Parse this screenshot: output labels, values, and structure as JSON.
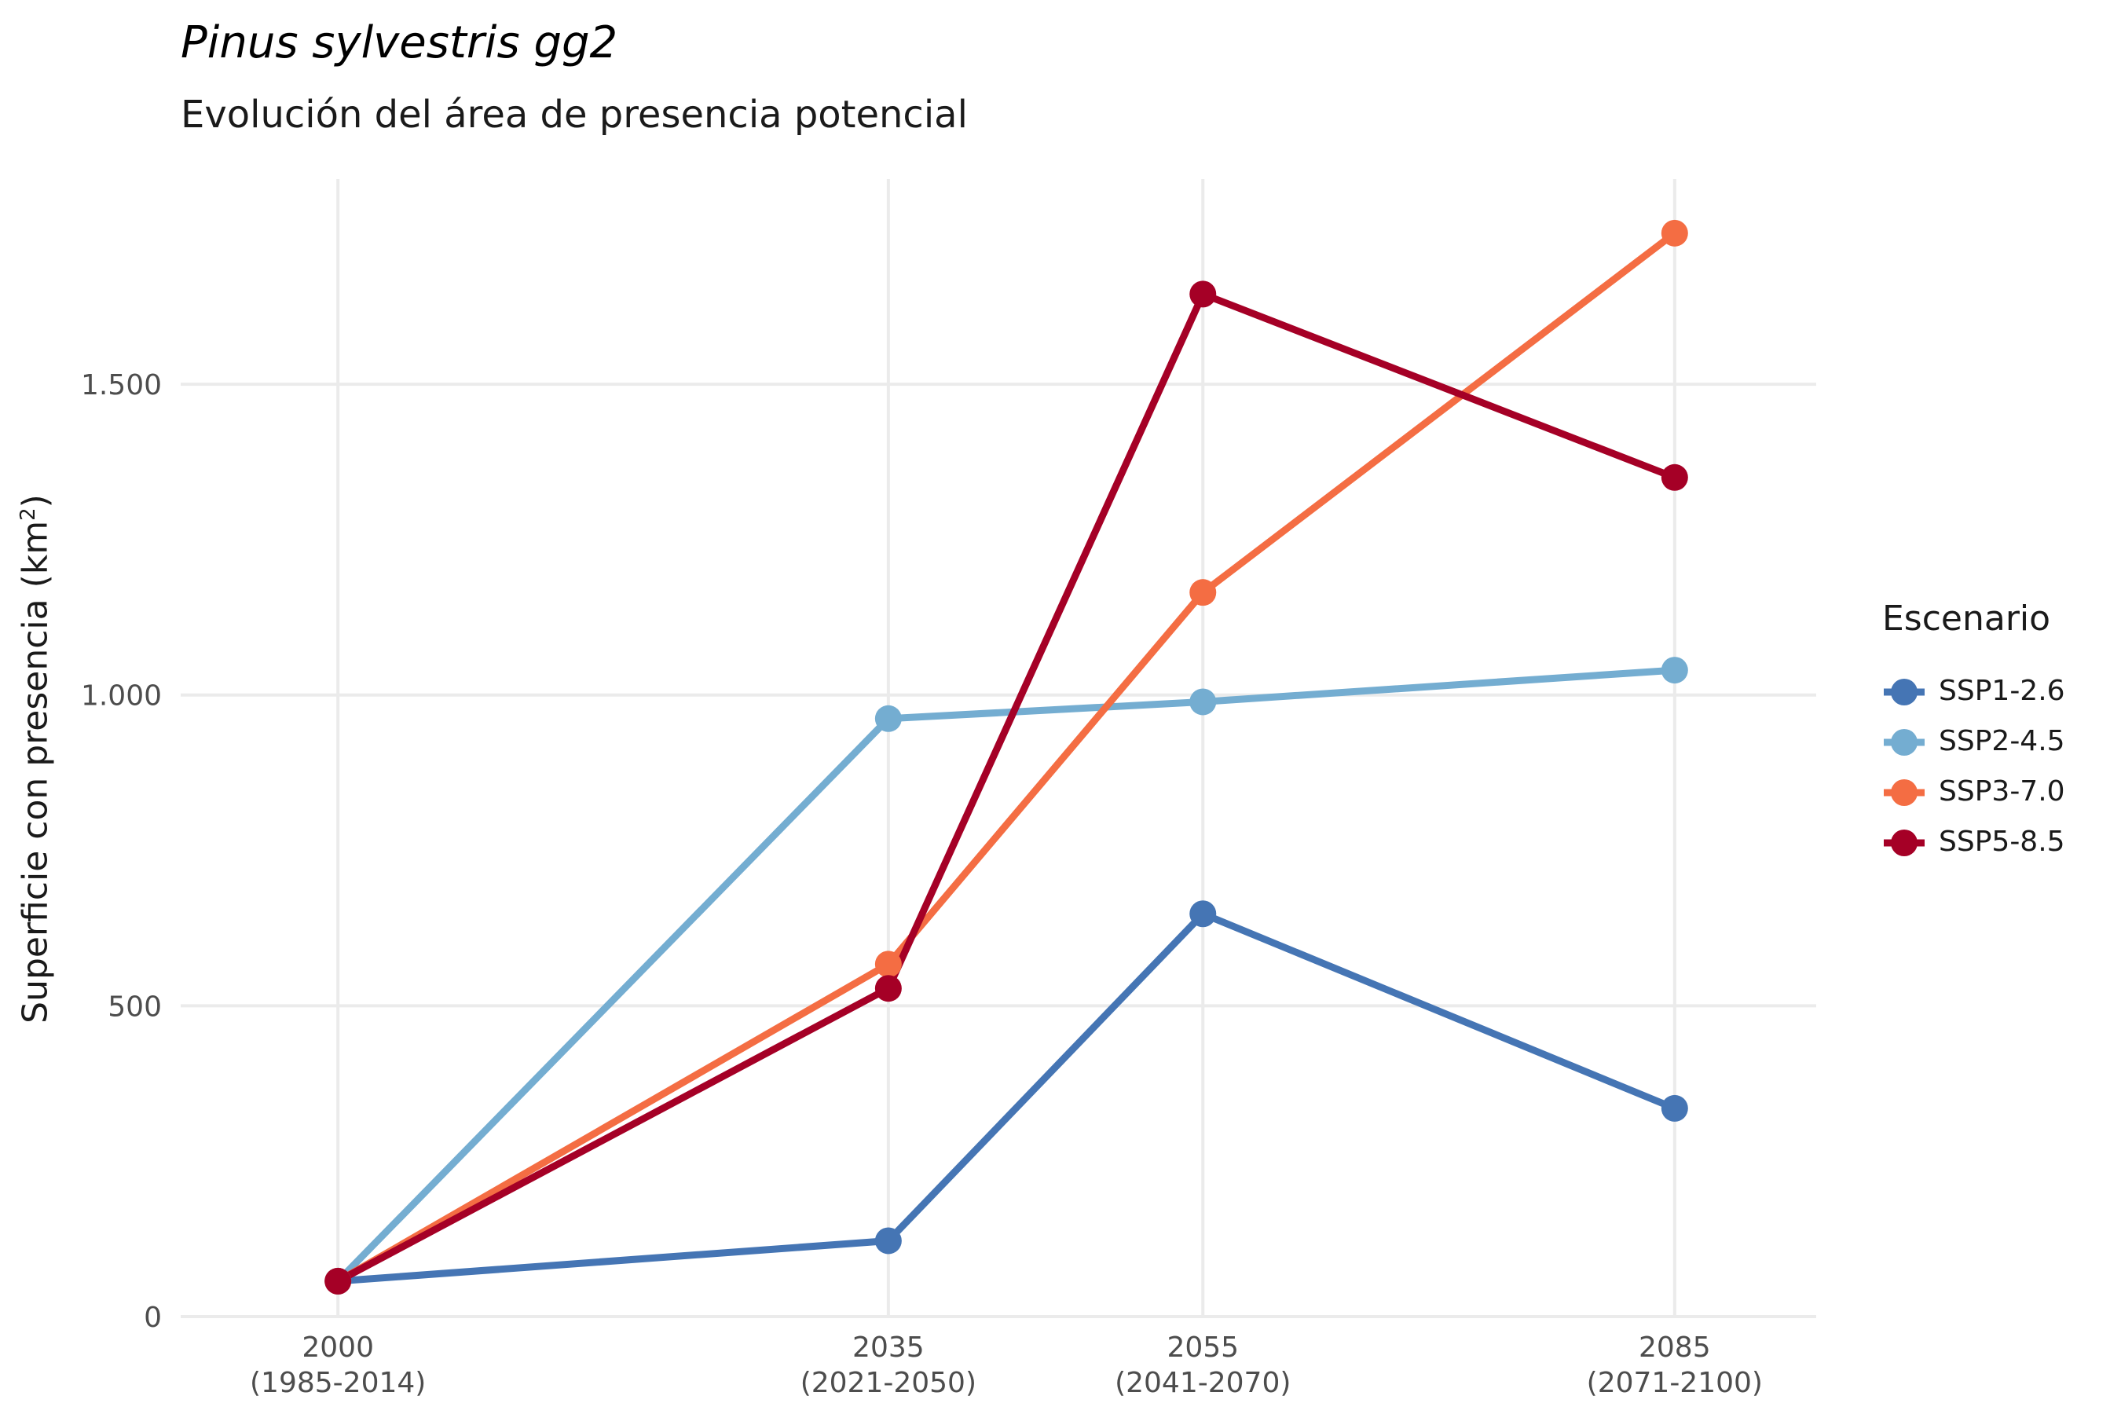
{
  "chart_data": {
    "type": "line",
    "title": "Pinus sylvestris gg2",
    "subtitle": "Evolución del área de presencia potencial",
    "ylabel": "Superficie con presencia (km",
    "ylabel_sup": "2",
    "ylabel_suffix": ")",
    "xlabel": "",
    "x": [
      2000,
      2035,
      2055,
      2085
    ],
    "x_tick_labels": [
      [
        "2000",
        "(1985-2014)"
      ],
      [
        "2035",
        "(2021-2050)"
      ],
      [
        "2055",
        "(2041-2070)"
      ],
      [
        "2085",
        "(2071-2100)"
      ]
    ],
    "xlim": [
      1990,
      2094
    ],
    "ylim": [
      0,
      1830
    ],
    "y_ticks": [
      0,
      500,
      1000,
      1500
    ],
    "y_tick_labels": [
      "0",
      "500",
      "1.000",
      "1.500"
    ],
    "grid": true,
    "legend": {
      "title": "Escenario",
      "placement": "right"
    },
    "series": [
      {
        "name": "SSP1-2.6",
        "color": "#4575b4",
        "values": [
          57,
          122,
          648,
          335
        ]
      },
      {
        "name": "SSP2-4.5",
        "color": "#74add1",
        "values": [
          57,
          962,
          989,
          1040
        ]
      },
      {
        "name": "SSP3-7.0",
        "color": "#f46d43",
        "values": [
          57,
          567,
          1165,
          1743
        ]
      },
      {
        "name": "SSP5-8.5",
        "color": "#a50026",
        "values": [
          57,
          528,
          1645,
          1350
        ]
      }
    ]
  }
}
